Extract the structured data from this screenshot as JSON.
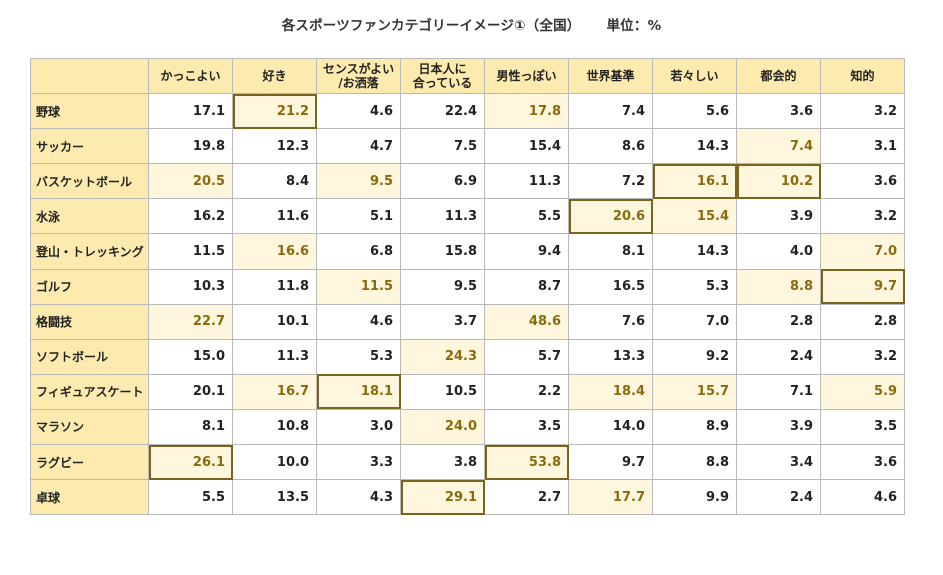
{
  "chart_data": {
    "type": "table",
    "title": "各スポーツファンカテゴリーイメージ①（全国）",
    "unit": "単位：%",
    "columns": [
      "かっこよい",
      "好き",
      "センスがよい\n/お洒落",
      "日本人に\n合っている",
      "男性っぽい",
      "世界基準",
      "若々しい",
      "都会的",
      "知的"
    ],
    "rows": [
      {
        "label": "野球",
        "values": [
          "17.1",
          "21.2",
          "4.6",
          "22.4",
          "17.8",
          "7.4",
          "5.6",
          "3.6",
          "3.2"
        ],
        "highlight": [
          1,
          4
        ],
        "boxed": [
          1
        ]
      },
      {
        "label": "サッカー",
        "values": [
          "19.8",
          "12.3",
          "4.7",
          "7.5",
          "15.4",
          "8.6",
          "14.3",
          "7.4",
          "3.1"
        ],
        "highlight": [
          7
        ],
        "boxed": []
      },
      {
        "label": "バスケットボール",
        "values": [
          "20.5",
          "8.4",
          "9.5",
          "6.9",
          "11.3",
          "7.2",
          "16.1",
          "10.2",
          "3.6"
        ],
        "highlight": [
          0,
          2,
          6,
          7
        ],
        "boxed": [
          6,
          7
        ]
      },
      {
        "label": "水泳",
        "values": [
          "16.2",
          "11.6",
          "5.1",
          "11.3",
          "5.5",
          "20.6",
          "15.4",
          "3.9",
          "3.2"
        ],
        "highlight": [
          5,
          6
        ],
        "boxed": [
          5
        ]
      },
      {
        "label": "登山・トレッキング",
        "values": [
          "11.5",
          "16.6",
          "6.8",
          "15.8",
          "9.4",
          "8.1",
          "14.3",
          "4.0",
          "7.0"
        ],
        "highlight": [
          1,
          8
        ],
        "boxed": []
      },
      {
        "label": "ゴルフ",
        "values": [
          "10.3",
          "11.8",
          "11.5",
          "9.5",
          "8.7",
          "16.5",
          "5.3",
          "8.8",
          "9.7"
        ],
        "highlight": [
          2,
          7,
          8
        ],
        "boxed": [
          8
        ]
      },
      {
        "label": "格闘技",
        "values": [
          "22.7",
          "10.1",
          "4.6",
          "3.7",
          "48.6",
          "7.6",
          "7.0",
          "2.8",
          "2.8"
        ],
        "highlight": [
          0,
          4
        ],
        "boxed": []
      },
      {
        "label": "ソフトボール",
        "values": [
          "15.0",
          "11.3",
          "5.3",
          "24.3",
          "5.7",
          "13.3",
          "9.2",
          "2.4",
          "3.2"
        ],
        "highlight": [
          3
        ],
        "boxed": []
      },
      {
        "label": "フィギュアスケート",
        "values": [
          "20.1",
          "16.7",
          "18.1",
          "10.5",
          "2.2",
          "18.4",
          "15.7",
          "7.1",
          "5.9"
        ],
        "highlight": [
          1,
          2,
          5,
          6,
          8
        ],
        "boxed": [
          2
        ]
      },
      {
        "label": "マラソン",
        "values": [
          "8.1",
          "10.8",
          "3.0",
          "24.0",
          "3.5",
          "14.0",
          "8.9",
          "3.9",
          "3.5"
        ],
        "highlight": [
          3
        ],
        "boxed": []
      },
      {
        "label": "ラグビー",
        "values": [
          "26.1",
          "10.0",
          "3.3",
          "3.8",
          "53.8",
          "9.7",
          "8.8",
          "3.4",
          "3.6"
        ],
        "highlight": [
          0,
          4
        ],
        "boxed": [
          0,
          4
        ]
      },
      {
        "label": "卓球",
        "values": [
          "5.5",
          "13.5",
          "4.3",
          "29.1",
          "2.7",
          "17.7",
          "9.9",
          "2.4",
          "4.6"
        ],
        "highlight": [
          3,
          5
        ],
        "boxed": [
          3
        ]
      }
    ]
  }
}
